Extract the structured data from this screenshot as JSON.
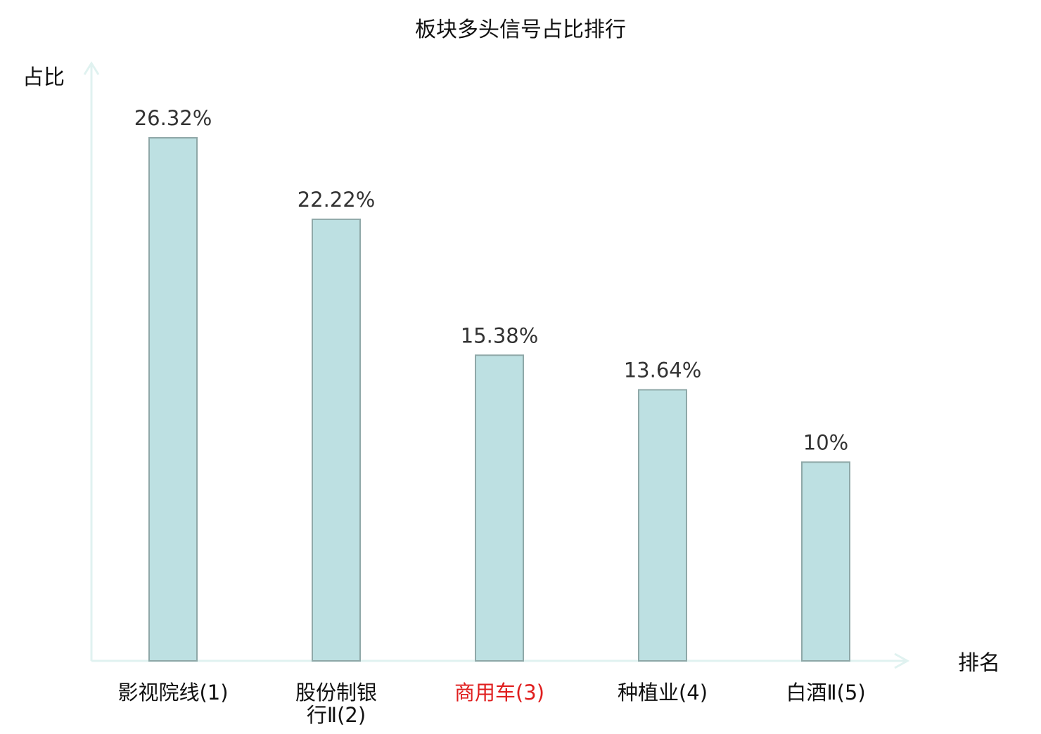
{
  "chart_data": {
    "type": "bar",
    "title": "板块多头信号占比排行",
    "ylabel": "占比",
    "xlabel": "排名",
    "categories": [
      [
        "影视院线",
        "(1)"
      ],
      [
        "股份制银",
        "行Ⅱ(2)"
      ],
      [
        "商用车",
        "(3)"
      ],
      [
        "种植业",
        "(4)"
      ],
      [
        "白酒Ⅱ",
        "(5)"
      ]
    ],
    "values": [
      26.32,
      22.22,
      15.38,
      13.64,
      10
    ],
    "value_labels": [
      "26.32%",
      "22.22%",
      "15.38%",
      "13.64%",
      "10%"
    ],
    "highlight_index": 2,
    "ylim": [
      0,
      30
    ],
    "grid": false,
    "legend": "none",
    "colors": {
      "bar_fill": "#bde0e2",
      "bar_stroke": "#8fa8a8",
      "axis": "#e0f2f0",
      "text": "#333333",
      "label_text": "#111111",
      "highlight_text": "#e01e1e"
    }
  }
}
